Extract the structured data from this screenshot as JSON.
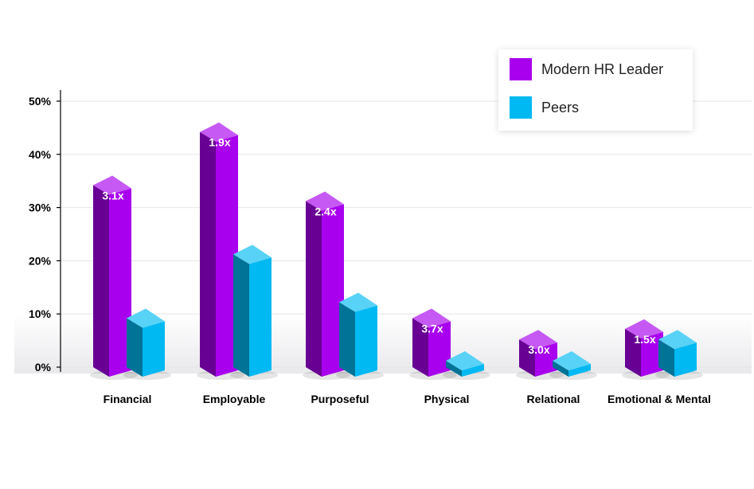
{
  "chart_data": {
    "type": "bar",
    "categories": [
      "Financial",
      "Employable",
      "Purposeful",
      "Physical",
      "Relational",
      "Emotional & Mental"
    ],
    "series": [
      {
        "name": "Modern HR Leader",
        "values": [
          36,
          46,
          33,
          11,
          7,
          9
        ],
        "color": "#a800ee"
      },
      {
        "name": "Peers",
        "values": [
          11,
          23,
          14,
          3,
          3,
          7
        ],
        "color": "#00b9f2"
      }
    ],
    "data_labels": [
      "3.1x",
      "1.9x",
      "2.4x",
      "3.7x",
      "3.0x",
      "1.5x"
    ],
    "y_ticks": [
      0,
      10,
      20,
      30,
      40,
      50
    ],
    "y_tick_format": "percent",
    "ylim": [
      0,
      50
    ],
    "grid": true,
    "legend_position": "top-right",
    "style": "3d-bars"
  }
}
